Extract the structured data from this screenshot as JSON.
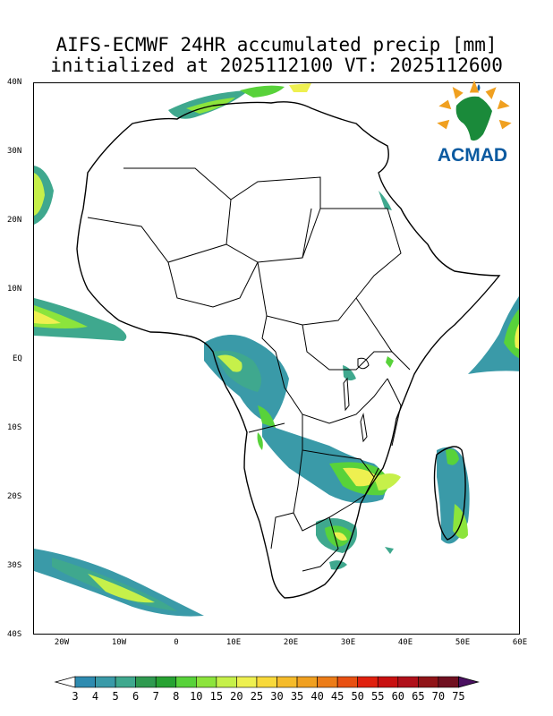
{
  "title_line1": "AIFS-ECMWF 24HR accumulated precip [mm]",
  "title_line2": "initialized at 2025112100 VT: 2025112600",
  "lat_labels": [
    "40N",
    "30N",
    "20N",
    "10N",
    "EQ",
    "10S",
    "20S",
    "30S",
    "40S"
  ],
  "lon_labels": [
    "20W",
    "10W",
    "0",
    "10E",
    "20E",
    "30E",
    "40E",
    "50E",
    "60E"
  ],
  "colorbar_levels": [
    "3",
    "4",
    "5",
    "6",
    "7",
    "8",
    "10",
    "15",
    "20",
    "25",
    "30",
    "35",
    "40",
    "45",
    "50",
    "55",
    "60",
    "65",
    "70",
    "75"
  ],
  "colorbar_colors": [
    "#2e8bb0",
    "#3a9aa8",
    "#3fa88e",
    "#2f9a50",
    "#27a232",
    "#58d23a",
    "#8ce43c",
    "#c6f04a",
    "#eef050",
    "#f8d93a",
    "#f5bb2a",
    "#f0a020",
    "#ec7c18",
    "#e85012",
    "#e0200e",
    "#c81010",
    "#b0101a",
    "#901418",
    "#701020",
    "#4a1060"
  ],
  "logo_text": "ACMAD",
  "map_extent": {
    "lon_min": -25,
    "lon_max": 60,
    "lat_min": -40,
    "lat_max": 40
  }
}
